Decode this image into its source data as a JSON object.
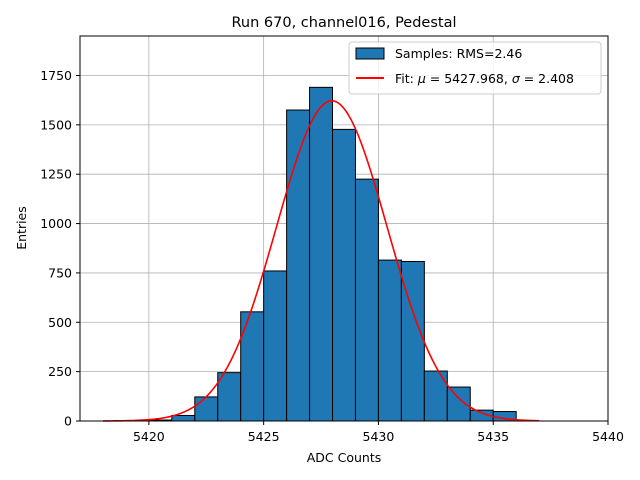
{
  "chart_data": {
    "type": "bar",
    "title": "Run 670, channel016, Pedestal",
    "xlabel": "ADC Counts",
    "ylabel": "Entries",
    "xlim": [
      5417,
      5440
    ],
    "ylim": [
      0,
      1950
    ],
    "grid": true,
    "legend_position": "upper-right",
    "x_ticks": [
      5420,
      5425,
      5430,
      5435,
      5440
    ],
    "y_ticks": [
      0,
      250,
      500,
      750,
      1000,
      1250,
      1500,
      1750
    ],
    "x_tick_labels": [
      "5420",
      "5425",
      "5430",
      "5435",
      "5440"
    ],
    "y_tick_labels": [
      "0",
      "250",
      "500",
      "750",
      "1000",
      "1250",
      "1500",
      "1750"
    ],
    "histogram": {
      "name": "Samples: RMS=2.46",
      "color": "#1f77b4",
      "edge_color": "#000000",
      "bin_edges": [
        5420,
        5421,
        5422,
        5423,
        5424,
        5425,
        5426,
        5427,
        5428,
        5429,
        5430,
        5431,
        5432,
        5433,
        5434,
        5435,
        5436
      ],
      "values": [
        5,
        28,
        122,
        245,
        553,
        760,
        1575,
        1690,
        1477,
        1225,
        815,
        808,
        253,
        172,
        55,
        48
      ]
    },
    "fit": {
      "name_prefix": "Fit: ",
      "mu_symbol": "μ",
      "mu_value": " = 5427.968, ",
      "sigma_symbol": "σ",
      "sigma_value": " = 2.408",
      "color": "#ff0000",
      "mu": 5427.968,
      "sigma": 2.408,
      "amplitude": 1622,
      "x_range": [
        5418,
        5437
      ]
    }
  }
}
